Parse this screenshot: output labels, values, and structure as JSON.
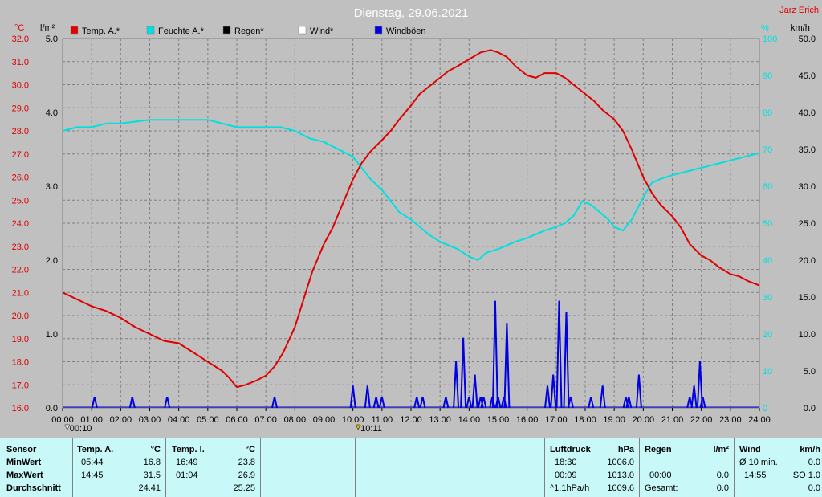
{
  "title": "Dienstag, 29.06.2021",
  "author": "Jarz Erich",
  "units": {
    "left1": "°C",
    "left2": "l/m²",
    "right1": "%",
    "right2": "km/h"
  },
  "legend": [
    {
      "label": "Temp. A.*",
      "color": "#e00000"
    },
    {
      "label": "Feuchte A.*",
      "color": "#00e0e0"
    },
    {
      "label": "Regen*",
      "color": "#000000"
    },
    {
      "label": "Wind*",
      "color": "#ffffff"
    },
    {
      "label": "Windböen",
      "color": "#0000e0"
    }
  ],
  "markers": [
    {
      "label": "00:10"
    },
    {
      "label": "10:11"
    }
  ],
  "chart_data": {
    "type": "line",
    "x_ticks": [
      "00:00",
      "01:00",
      "02:00",
      "03:00",
      "04:00",
      "05:00",
      "06:00",
      "07:00",
      "08:00",
      "09:00",
      "10:00",
      "11:00",
      "12:00",
      "13:00",
      "14:00",
      "15:00",
      "16:00",
      "17:00",
      "18:00",
      "19:00",
      "20:00",
      "21:00",
      "22:00",
      "23:00",
      "24:00"
    ],
    "temp_ticks": [
      "32.0",
      "31.0",
      "30.0",
      "29.0",
      "28.0",
      "27.0",
      "26.0",
      "25.0",
      "24.0",
      "23.0",
      "22.0",
      "21.0",
      "20.0",
      "19.0",
      "18.0",
      "17.0",
      "16.0"
    ],
    "rain_ticks": [
      "5.0",
      "4.0",
      "3.0",
      "2.0",
      "1.0",
      "0.0"
    ],
    "humidity_ticks": [
      "100",
      "90",
      "80",
      "70",
      "60",
      "50",
      "40",
      "30",
      "20",
      "10",
      "0"
    ],
    "wind_ticks": [
      "50.0",
      "45.0",
      "40.0",
      "35.0",
      "30.0",
      "25.0",
      "20.0",
      "15.0",
      "10.0",
      "5.0",
      "0.0"
    ],
    "temp_range": [
      16,
      32
    ],
    "humidity_range": [
      0,
      100
    ],
    "wind_range": [
      0,
      50
    ],
    "series": [
      {
        "name": "Temp. A.*",
        "color": "#e00000",
        "points": [
          [
            0,
            21.0
          ],
          [
            0.5,
            20.7
          ],
          [
            1,
            20.4
          ],
          [
            1.5,
            20.2
          ],
          [
            2,
            19.9
          ],
          [
            2.5,
            19.5
          ],
          [
            3,
            19.2
          ],
          [
            3.5,
            18.9
          ],
          [
            4,
            18.8
          ],
          [
            4.5,
            18.4
          ],
          [
            5,
            18.0
          ],
          [
            5.5,
            17.6
          ],
          [
            5.74,
            17.3
          ],
          [
            6,
            16.9
          ],
          [
            6.3,
            17.0
          ],
          [
            6.7,
            17.2
          ],
          [
            7,
            17.4
          ],
          [
            7.3,
            17.8
          ],
          [
            7.6,
            18.4
          ],
          [
            8,
            19.5
          ],
          [
            8.3,
            20.7
          ],
          [
            8.6,
            21.9
          ],
          [
            9,
            23.1
          ],
          [
            9.3,
            23.8
          ],
          [
            9.6,
            24.7
          ],
          [
            10,
            25.9
          ],
          [
            10.3,
            26.6
          ],
          [
            10.6,
            27.1
          ],
          [
            11,
            27.6
          ],
          [
            11.3,
            28.0
          ],
          [
            11.6,
            28.5
          ],
          [
            12,
            29.1
          ],
          [
            12.3,
            29.6
          ],
          [
            12.6,
            29.9
          ],
          [
            13,
            30.3
          ],
          [
            13.3,
            30.6
          ],
          [
            13.6,
            30.8
          ],
          [
            14,
            31.1
          ],
          [
            14.4,
            31.4
          ],
          [
            14.75,
            31.5
          ],
          [
            15,
            31.4
          ],
          [
            15.3,
            31.2
          ],
          [
            15.6,
            30.8
          ],
          [
            16,
            30.4
          ],
          [
            16.3,
            30.3
          ],
          [
            16.6,
            30.5
          ],
          [
            17,
            30.5
          ],
          [
            17.3,
            30.3
          ],
          [
            17.6,
            30.0
          ],
          [
            18,
            29.6
          ],
          [
            18.3,
            29.3
          ],
          [
            18.6,
            28.9
          ],
          [
            19,
            28.5
          ],
          [
            19.3,
            28.0
          ],
          [
            19.6,
            27.2
          ],
          [
            20,
            26.0
          ],
          [
            20.3,
            25.3
          ],
          [
            20.6,
            24.8
          ],
          [
            21,
            24.3
          ],
          [
            21.3,
            23.8
          ],
          [
            21.6,
            23.1
          ],
          [
            22,
            22.6
          ],
          [
            22.3,
            22.4
          ],
          [
            22.6,
            22.1
          ],
          [
            23,
            21.8
          ],
          [
            23.3,
            21.7
          ],
          [
            23.6,
            21.5
          ],
          [
            24,
            21.3
          ]
        ]
      },
      {
        "name": "Feuchte A.*",
        "color": "#00e0e0",
        "points": [
          [
            0,
            75
          ],
          [
            0.5,
            76
          ],
          [
            1,
            76
          ],
          [
            1.5,
            77
          ],
          [
            2,
            77
          ],
          [
            3,
            78
          ],
          [
            4,
            78
          ],
          [
            5,
            78
          ],
          [
            5.5,
            77
          ],
          [
            6,
            76
          ],
          [
            6.5,
            76
          ],
          [
            7,
            76
          ],
          [
            7.5,
            76
          ],
          [
            8,
            75
          ],
          [
            8.5,
            73
          ],
          [
            9,
            72
          ],
          [
            9.5,
            70
          ],
          [
            10,
            68
          ],
          [
            10.3,
            65
          ],
          [
            10.6,
            62
          ],
          [
            11,
            59
          ],
          [
            11.3,
            56
          ],
          [
            11.6,
            53
          ],
          [
            12,
            51
          ],
          [
            12.3,
            49
          ],
          [
            12.6,
            47
          ],
          [
            13,
            45
          ],
          [
            13.3,
            44
          ],
          [
            13.6,
            43
          ],
          [
            14,
            41
          ],
          [
            14.3,
            40
          ],
          [
            14.6,
            42
          ],
          [
            15,
            43
          ],
          [
            15.3,
            44
          ],
          [
            15.6,
            45
          ],
          [
            16,
            46
          ],
          [
            16.3,
            47
          ],
          [
            16.6,
            48
          ],
          [
            17,
            49
          ],
          [
            17.3,
            50
          ],
          [
            17.6,
            52
          ],
          [
            17.9,
            56
          ],
          [
            18.2,
            55
          ],
          [
            18.5,
            53
          ],
          [
            18.8,
            51
          ],
          [
            19,
            49
          ],
          [
            19.3,
            48
          ],
          [
            19.6,
            51
          ],
          [
            20,
            57
          ],
          [
            20.3,
            61
          ],
          [
            20.6,
            62
          ],
          [
            21,
            63
          ],
          [
            21.5,
            64
          ],
          [
            22,
            65
          ],
          [
            22.5,
            66
          ],
          [
            23,
            67
          ],
          [
            23.5,
            68
          ],
          [
            24,
            69
          ]
        ]
      },
      {
        "name": "Windböen",
        "color": "#0000e0",
        "points": [
          [
            1.1,
            1.5
          ],
          [
            2.4,
            1.5
          ],
          [
            3.6,
            1.5
          ],
          [
            7.3,
            1.5
          ],
          [
            10,
            3.0
          ],
          [
            10.5,
            3.0
          ],
          [
            10.8,
            1.5
          ],
          [
            11,
            1.5
          ],
          [
            12.2,
            1.5
          ],
          [
            12.4,
            1.5
          ],
          [
            13.2,
            1.5
          ],
          [
            13.55,
            6.3
          ],
          [
            13.8,
            9.5
          ],
          [
            14,
            1.5
          ],
          [
            14.2,
            4.5
          ],
          [
            14.4,
            1.5
          ],
          [
            14.5,
            1.5
          ],
          [
            14.8,
            1.5
          ],
          [
            14.9,
            14.5
          ],
          [
            15,
            1.5
          ],
          [
            15.2,
            1.5
          ],
          [
            15.3,
            11.5
          ],
          [
            16.7,
            3.0
          ],
          [
            16.9,
            4.5
          ],
          [
            17.1,
            14.5
          ],
          [
            17.35,
            13.0
          ],
          [
            17.5,
            1.5
          ],
          [
            18.2,
            1.5
          ],
          [
            18.6,
            3.0
          ],
          [
            19.4,
            1.5
          ],
          [
            19.5,
            1.5
          ],
          [
            19.85,
            4.5
          ],
          [
            21.6,
            1.5
          ],
          [
            21.75,
            3.0
          ],
          [
            21.95,
            6.3
          ],
          [
            22.05,
            1.5
          ]
        ]
      }
    ]
  },
  "panel": {
    "sensor": {
      "header": "Sensor",
      "min": "MinWert",
      "max": "MaxWert",
      "avg": "Durchschnitt"
    },
    "temp_a": {
      "header": "Temp. A.",
      "unit": "°C",
      "min_time": "05:44",
      "min": "16.8",
      "max_time": "14:45",
      "max": "31.5",
      "avg": "24.41"
    },
    "temp_i": {
      "header": "Temp. I.",
      "unit": "°C",
      "min_time": "16:49",
      "min": "23.8",
      "max_time": "01:04",
      "max": "26.9",
      "avg": "25.25"
    },
    "pressure": {
      "header": "Luftdruck",
      "unit": "hPa",
      "min_time": "18:30",
      "min": "1006.0",
      "max_time": "00:09",
      "max": "1013.0",
      "trend": "^1.1hPa/h",
      "avg": "1009.6"
    },
    "rain": {
      "header": "Regen",
      "unit": "l/m²",
      "max_time": "00:00",
      "max": "0.0",
      "total_label": "Gesamt:",
      "total": "0.0"
    },
    "wind": {
      "header": "Wind",
      "unit": "km/h",
      "avg_label": "Ø 10 min.",
      "avg": "0.0",
      "max_time": "14:55",
      "max": "SO 1.0",
      "last": "0.0"
    }
  }
}
